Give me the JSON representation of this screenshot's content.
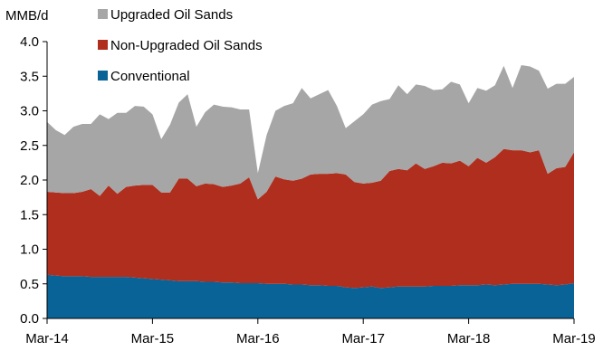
{
  "chart_data": {
    "type": "area",
    "stacked": true,
    "title": "",
    "ylabel": "MMB/d",
    "xlabel": "",
    "ylim": [
      0,
      4.0
    ],
    "yticks": [
      "0.0",
      "0.5",
      "1.0",
      "1.5",
      "2.0",
      "2.5",
      "3.0",
      "3.5",
      "4.0"
    ],
    "xticks": [
      {
        "label": "Mar-14",
        "index": 0
      },
      {
        "label": "Mar-15",
        "index": 12
      },
      {
        "label": "Mar-16",
        "index": 24
      },
      {
        "label": "Mar-17",
        "index": 36
      },
      {
        "label": "Mar-18",
        "index": 48
      },
      {
        "label": "Mar-19",
        "index": 60
      }
    ],
    "grid": false,
    "legend_position": "top-left",
    "legend": [
      {
        "label": "Upgraded Oil Sands",
        "color": "#a6a6a6"
      },
      {
        "label": "Non-Upgraded Oil Sands",
        "color": "#b02e1d"
      },
      {
        "label": "Conventional",
        "color": "#0a6396"
      }
    ],
    "series": [
      {
        "name": "Conventional",
        "color": "#0a6396",
        "values": [
          0.63,
          0.62,
          0.61,
          0.61,
          0.61,
          0.6,
          0.6,
          0.6,
          0.6,
          0.6,
          0.59,
          0.58,
          0.57,
          0.56,
          0.55,
          0.54,
          0.54,
          0.54,
          0.53,
          0.53,
          0.52,
          0.52,
          0.51,
          0.51,
          0.51,
          0.5,
          0.5,
          0.5,
          0.49,
          0.49,
          0.48,
          0.48,
          0.47,
          0.47,
          0.45,
          0.44,
          0.45,
          0.46,
          0.44,
          0.45,
          0.46,
          0.46,
          0.46,
          0.46,
          0.47,
          0.47,
          0.47,
          0.48,
          0.48,
          0.48,
          0.49,
          0.48,
          0.49,
          0.5,
          0.5,
          0.5,
          0.5,
          0.49,
          0.48,
          0.49,
          0.51
        ]
      },
      {
        "name": "Non-Upgraded Oil Sands",
        "color": "#b02e1d",
        "values": [
          1.2,
          1.2,
          1.2,
          1.2,
          1.22,
          1.27,
          1.17,
          1.32,
          1.2,
          1.3,
          1.33,
          1.35,
          1.36,
          1.26,
          1.27,
          1.48,
          1.48,
          1.37,
          1.42,
          1.41,
          1.38,
          1.4,
          1.44,
          1.53,
          1.21,
          1.33,
          1.55,
          1.51,
          1.5,
          1.53,
          1.6,
          1.61,
          1.62,
          1.63,
          1.63,
          1.53,
          1.5,
          1.5,
          1.55,
          1.68,
          1.7,
          1.68,
          1.78,
          1.7,
          1.73,
          1.78,
          1.77,
          1.8,
          1.72,
          1.84,
          1.76,
          1.85,
          1.96,
          1.93,
          1.93,
          1.9,
          1.93,
          1.6,
          1.69,
          1.7,
          1.89
        ]
      },
      {
        "name": "Upgraded Oil Sands",
        "color": "#a6a6a6",
        "values": [
          1.01,
          0.9,
          0.84,
          0.96,
          0.98,
          0.94,
          1.18,
          0.96,
          1.17,
          1.07,
          1.15,
          1.13,
          1.02,
          0.77,
          0.98,
          1.1,
          1.22,
          0.86,
          1.03,
          1.15,
          1.16,
          1.13,
          1.07,
          0.98,
          0.38,
          0.82,
          0.95,
          1.06,
          1.12,
          1.31,
          1.1,
          1.15,
          1.21,
          0.97,
          0.67,
          0.88,
          1.0,
          1.13,
          1.15,
          1.04,
          1.21,
          1.1,
          1.14,
          1.2,
          1.1,
          1.06,
          1.18,
          1.1,
          0.91,
          1.01,
          1.04,
          1.04,
          1.2,
          0.9,
          1.23,
          1.24,
          1.15,
          1.23,
          1.22,
          1.2,
          1.09
        ]
      }
    ]
  }
}
